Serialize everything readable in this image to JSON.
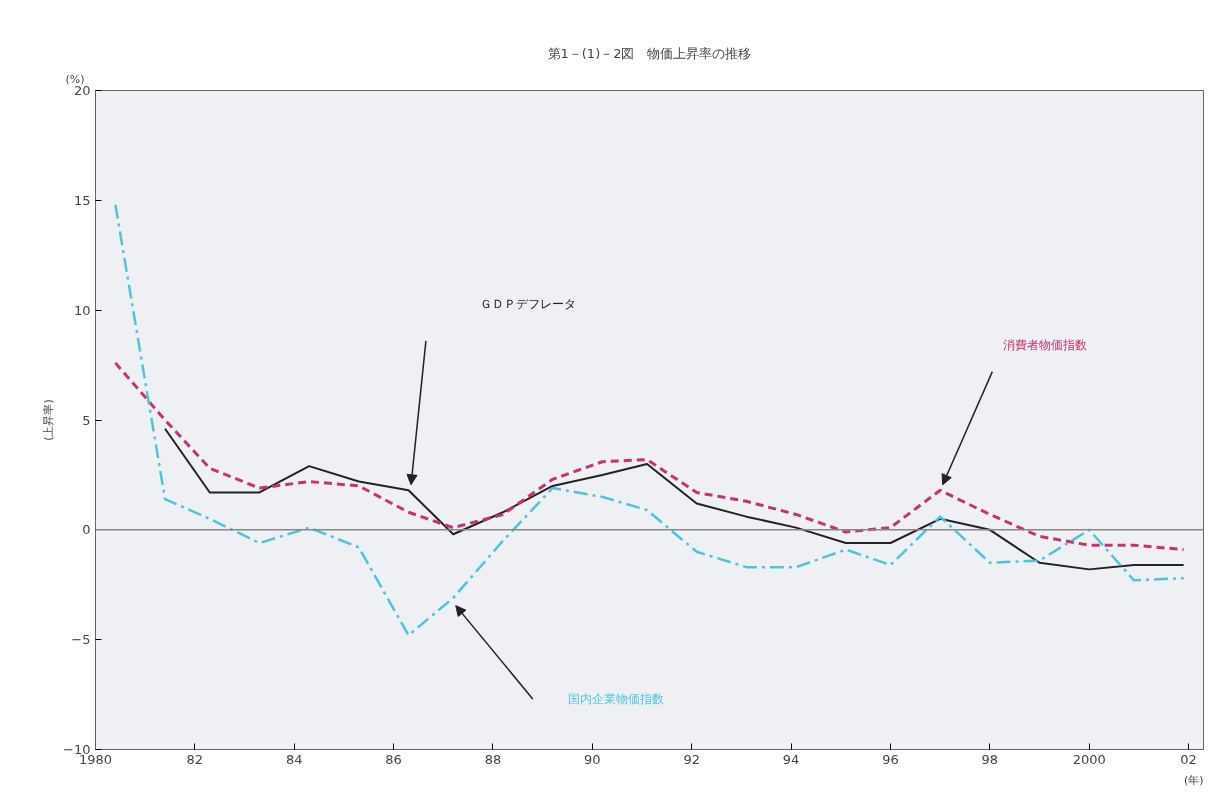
{
  "chart_data": {
    "type": "line",
    "title": "第1－(1)－2図　物価上昇率の推移",
    "ylabel": "(上昇率)",
    "xlabel": "(年)",
    "annotations": [
      "(%)"
    ],
    "x": [
      1980.4,
      1981.4,
      1982.3,
      1983.3,
      1984.3,
      1985.3,
      1986.3,
      1987.2,
      1988.2,
      1989.2,
      1990.2,
      1991.1,
      1992.1,
      1993.1,
      1994.1,
      1995.1,
      1996.0,
      1997.0,
      1998.0,
      1999.0,
      2000.0,
      2000.9,
      2001.9
    ],
    "series": [
      {
        "name": "ＧＤＰデフレータ",
        "color": "#222222",
        "line_style": "solid",
        "values": [
          null,
          4.6,
          1.7,
          1.7,
          2.9,
          2.2,
          1.8,
          -0.2,
          0.8,
          2.0,
          2.5,
          3.0,
          1.2,
          0.6,
          0.1,
          -0.6,
          -0.6,
          0.5,
          0.0,
          -1.5,
          -1.8,
          -1.6,
          -1.6
        ]
      },
      {
        "name": "消費者物価指数",
        "color": "#c8326e",
        "line_style": "dashed",
        "values": [
          7.6,
          5.0,
          2.8,
          1.9,
          2.2,
          2.0,
          0.8,
          0.1,
          0.7,
          2.3,
          3.1,
          3.2,
          1.7,
          1.3,
          0.7,
          -0.1,
          0.1,
          1.8,
          0.7,
          -0.3,
          -0.7,
          -0.7,
          -0.9
        ]
      },
      {
        "name": "国内企業物価指数",
        "color": "#4fc3dc",
        "line_style": "dashdot",
        "values": [
          14.8,
          1.4,
          0.5,
          -0.6,
          0.1,
          -0.8,
          -4.8,
          -3.1,
          -0.5,
          1.9,
          1.5,
          0.9,
          -1.0,
          -1.7,
          -1.7,
          -0.9,
          -1.6,
          0.6,
          -1.5,
          -1.4,
          0.0,
          -2.3,
          -2.2
        ]
      }
    ],
    "xlim": [
      1980,
      2002.3
    ],
    "ylim": [
      -10,
      20
    ],
    "xticks": [
      1980,
      {
        "value": 1982,
        "label": "82"
      },
      {
        "value": 1984,
        "label": "84"
      },
      {
        "value": 1986,
        "label": "86"
      },
      {
        "value": 1988,
        "label": "88"
      },
      {
        "value": 1990,
        "label": "90"
      },
      {
        "value": 1992,
        "label": "92"
      },
      {
        "value": 1994,
        "label": "94"
      },
      {
        "value": 1996,
        "label": "96"
      },
      {
        "value": 1998,
        "label": "98"
      },
      2000,
      {
        "value": 2002,
        "label": "02"
      }
    ],
    "yticks": [
      -10,
      -5,
      0,
      5,
      10,
      15,
      20
    ],
    "ref_lines": [
      {
        "axis": "y",
        "value": 0,
        "color": "#888888"
      }
    ],
    "grid": false,
    "marker": "none"
  }
}
